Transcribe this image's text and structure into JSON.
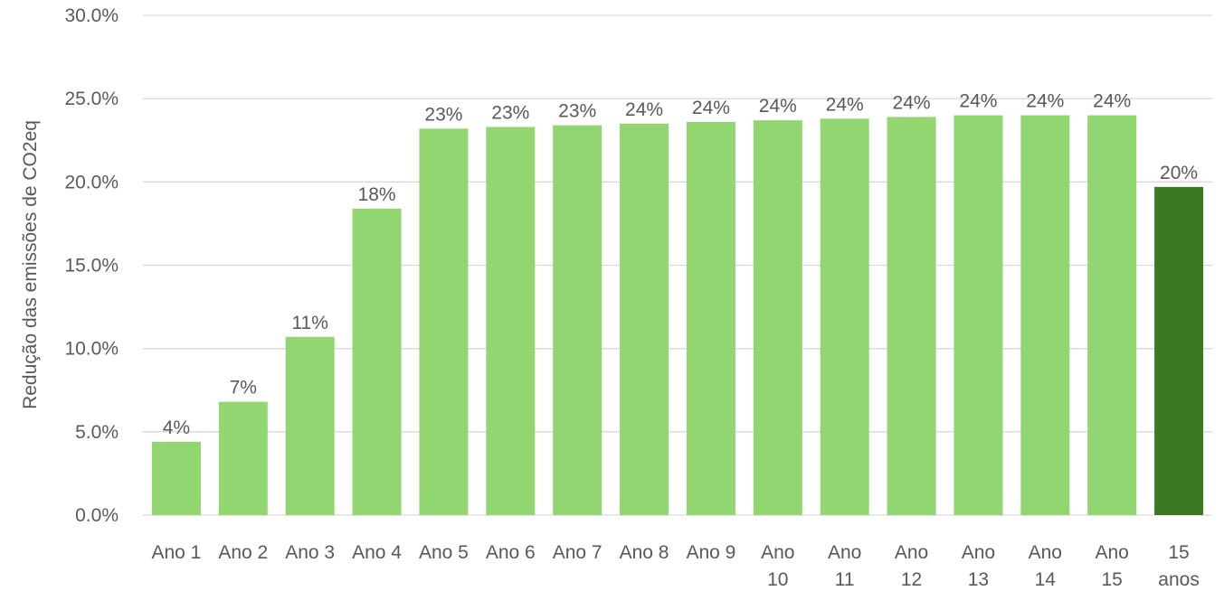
{
  "chart_data": {
    "type": "bar",
    "y_axis_label": "Redução das emissões de CO2eq",
    "categories": [
      "Ano 1",
      "Ano 2",
      "Ano 3",
      "Ano 4",
      "Ano 5",
      "Ano 6",
      "Ano 7",
      "Ano 8",
      "Ano 9",
      "Ano 10",
      "Ano 11",
      "Ano 12",
      "Ano 13",
      "Ano 14",
      "Ano 15",
      "15 anos"
    ],
    "values": [
      4.4,
      6.8,
      10.7,
      18.4,
      23.2,
      23.3,
      23.4,
      23.5,
      23.6,
      23.7,
      23.8,
      23.9,
      24.0,
      24.0,
      24.0,
      19.7
    ],
    "value_labels": [
      "4%",
      "7%",
      "11%",
      "18%",
      "23%",
      "23%",
      "23%",
      "24%",
      "24%",
      "24%",
      "24%",
      "24%",
      "24%",
      "24%",
      "24%",
      "20%"
    ],
    "colors": [
      "#92d672",
      "#92d672",
      "#92d672",
      "#92d672",
      "#92d672",
      "#92d672",
      "#92d672",
      "#92d672",
      "#92d672",
      "#92d672",
      "#92d672",
      "#92d672",
      "#92d672",
      "#92d672",
      "#92d672",
      "#3b7a22"
    ],
    "ylim": [
      0,
      30
    ],
    "yticks": [
      {
        "value": 0,
        "label": "0.0%"
      },
      {
        "value": 5,
        "label": "5.0%"
      },
      {
        "value": 10,
        "label": "10.0%"
      },
      {
        "value": 15,
        "label": "15.0%"
      },
      {
        "value": 20,
        "label": "20.0%"
      },
      {
        "value": 25,
        "label": "25.0%"
      },
      {
        "value": 30,
        "label": "30.0%"
      }
    ],
    "grid": true
  }
}
